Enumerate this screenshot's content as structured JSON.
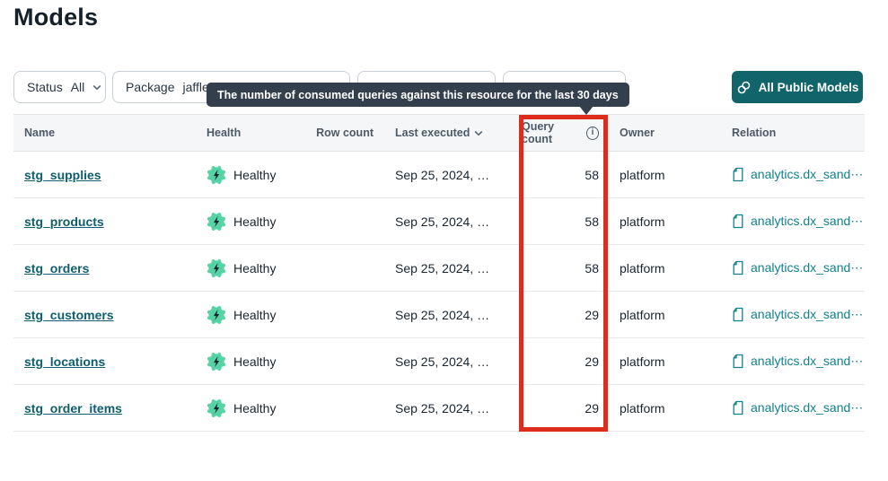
{
  "page": {
    "title": "Models"
  },
  "filters": {
    "status_label": "Status",
    "status_value": "All",
    "package_label": "Package",
    "package_value": "jaffle_"
  },
  "toolbar": {
    "all_public_models": "All Public Models"
  },
  "tooltip": {
    "text": "The number of consumed queries against this resource for the last 30 days"
  },
  "table": {
    "columns": {
      "name": "Name",
      "health": "Health",
      "row_count": "Row count",
      "last_executed": "Last executed",
      "query_count": "Query count",
      "owner": "Owner",
      "relation": "Relation"
    },
    "rows": [
      {
        "name": "stg_supplies",
        "health": "Healthy",
        "row_count": "",
        "last_executed": "Sep 25, 2024, …",
        "query_count": "58",
        "owner": "platform",
        "relation": "analytics.dx_sand⋯"
      },
      {
        "name": "stg_products",
        "health": "Healthy",
        "row_count": "",
        "last_executed": "Sep 25, 2024, …",
        "query_count": "58",
        "owner": "platform",
        "relation": "analytics.dx_sand⋯"
      },
      {
        "name": "stg_orders",
        "health": "Healthy",
        "row_count": "",
        "last_executed": "Sep 25, 2024, …",
        "query_count": "58",
        "owner": "platform",
        "relation": "analytics.dx_sand⋯"
      },
      {
        "name": "stg_customers",
        "health": "Healthy",
        "row_count": "",
        "last_executed": "Sep 25, 2024, …",
        "query_count": "29",
        "owner": "platform",
        "relation": "analytics.dx_sand⋯"
      },
      {
        "name": "stg_locations",
        "health": "Healthy",
        "row_count": "",
        "last_executed": "Sep 25, 2024, …",
        "query_count": "29",
        "owner": "platform",
        "relation": "analytics.dx_sand⋯"
      },
      {
        "name": "stg_order_items",
        "health": "Healthy",
        "row_count": "",
        "last_executed": "Sep 25, 2024, …",
        "query_count": "29",
        "owner": "platform",
        "relation": "analytics.dx_sand⋯"
      }
    ]
  },
  "colors": {
    "accent_teal": "#11656a",
    "healthy_badge": "#55d3a5",
    "model_link_teal": "#0d5e6e",
    "relation_link_teal": "#12808e",
    "highlight_red": "#dd2b1c",
    "tooltip_bg": "#333f4d"
  }
}
